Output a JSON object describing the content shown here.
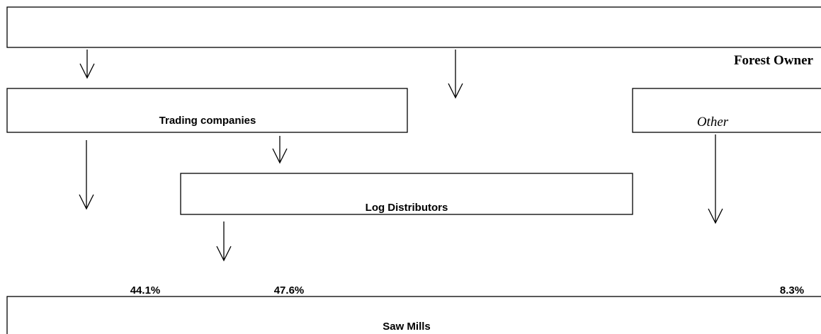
{
  "nodes": [
    {
      "label": "Forest Owner"
    },
    {
      "label": "Trading companies"
    },
    {
      "label": "Other"
    },
    {
      "label": "Log Distributors"
    },
    {
      "label": "Saw Mills"
    }
  ],
  "shares": [
    "44.1%",
    "47.6%",
    "8.3%"
  ]
}
